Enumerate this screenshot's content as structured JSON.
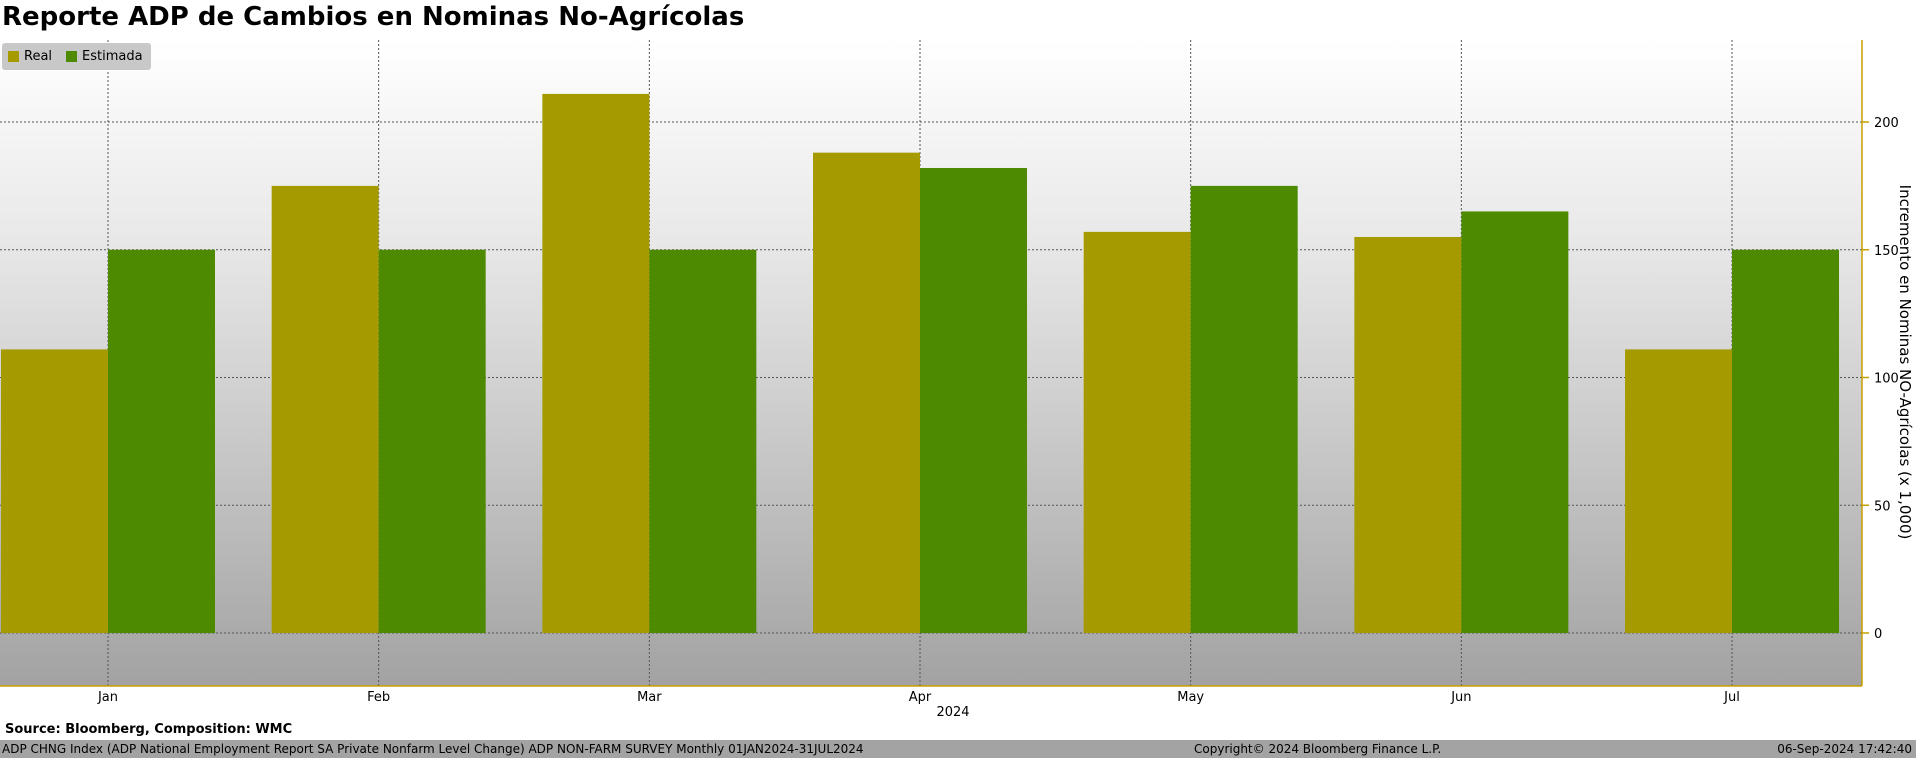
{
  "colors": {
    "real": "#a59b00",
    "estimada": "#4e8a00",
    "axis": "#c8a000",
    "footer_bg": "#a3a3a3"
  },
  "chart_data": {
    "type": "bar",
    "title": "Reporte ADP de Cambios en Nominas No-Agrícolas",
    "ylabel": "Incremento en Nominas NO-Agrícolas (x 1,000)",
    "xlabel": "2024",
    "categories": [
      "Jan",
      "Feb",
      "Mar",
      "Apr",
      "May",
      "Jun",
      "Jul"
    ],
    "series": [
      {
        "name": "Real",
        "values": [
          111,
          175,
          211,
          188,
          157,
          155,
          111
        ]
      },
      {
        "name": "Estimada",
        "values": [
          150,
          150,
          150,
          182,
          175,
          165,
          150
        ]
      }
    ],
    "yticks": [
      0,
      50,
      100,
      150,
      200
    ],
    "ylim": [
      -20,
      232
    ],
    "grid": true,
    "legend_position": "top-left"
  },
  "footer": {
    "source": "Source: Bloomberg, Composition: WMC",
    "left": "ADP CHNG Index (ADP National Employment Report SA Private Nonfarm Level Change) ADP NON-FARM SURVEY  Monthly 01JAN2024-31JUL2024",
    "center": "Copyright© 2024 Bloomberg Finance L.P.",
    "right": "06-Sep-2024 17:42:40"
  }
}
